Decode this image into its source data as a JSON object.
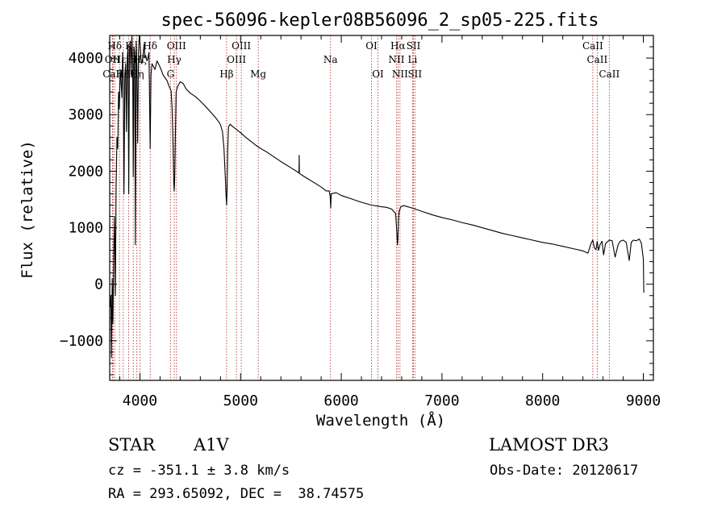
{
  "chart_data": {
    "type": "line",
    "title": "spec-56096-kepler08B56096_2_sp05-225.fits",
    "xlabel": "Wavelength (Å)",
    "ylabel": "Flux (relative)",
    "xlim": [
      3700,
      9100
    ],
    "ylim": [
      -1700,
      4400
    ],
    "xticks": [
      4000,
      5000,
      6000,
      7000,
      8000,
      9000
    ],
    "yticks": [
      -1000,
      0,
      1000,
      2000,
      3000,
      4000
    ],
    "grid": false,
    "series": [
      {
        "name": "spectrum",
        "x": [
          3705,
          3712,
          3718,
          3725,
          3732,
          3740,
          3748,
          3756,
          3764,
          3772,
          3780,
          3788,
          3796,
          3804,
          3812,
          3820,
          3828,
          3835,
          3842,
          3850,
          3858,
          3866,
          3874,
          3882,
          3889,
          3896,
          3904,
          3912,
          3920,
          3928,
          3934,
          3941,
          3948,
          3955,
          3962,
          3970,
          3978,
          3986,
          3994,
          4002,
          4010,
          4018,
          4026,
          4034,
          4042,
          4050,
          4060,
          4070,
          4080,
          4090,
          4102,
          4110,
          4120,
          4135,
          4150,
          4170,
          4190,
          4210,
          4230,
          4250,
          4270,
          4290,
          4310,
          4320,
          4330,
          4336,
          4341,
          4346,
          4352,
          4360,
          4375,
          4400,
          4430,
          4460,
          4500,
          4550,
          4600,
          4650,
          4700,
          4750,
          4780,
          4800,
          4820,
          4835,
          4848,
          4856,
          4861,
          4866,
          4872,
          4880,
          4895,
          4920,
          4950,
          5000,
          5050,
          5100,
          5150,
          5200,
          5250,
          5300,
          5400,
          5500,
          5580,
          5582,
          5584,
          5600,
          5700,
          5800,
          5850,
          5880,
          5890,
          5895,
          5900,
          5950,
          6000,
          6100,
          6200,
          6300,
          6400,
          6450,
          6500,
          6540,
          6552,
          6558,
          6563,
          6568,
          6575,
          6590,
          6620,
          6700,
          6800,
          6900,
          7000,
          7100,
          7200,
          7300,
          7400,
          7500,
          7600,
          7700,
          7800,
          7900,
          8000,
          8100,
          8200,
          8300,
          8400,
          8450,
          8480,
          8498,
          8515,
          8530,
          8542,
          8555,
          8570,
          8590,
          8605,
          8625,
          8662,
          8690,
          8720,
          8750,
          8770,
          8800,
          8830,
          8860,
          8880,
          8900,
          8930,
          8960,
          8980,
          9000,
          9005
        ],
        "values": [
          -400,
          -200,
          -1300,
          100,
          -700,
          500,
          1200,
          -200,
          1700,
          2600,
          2400,
          3400,
          3100,
          3800,
          3600,
          3300,
          4100,
          3600,
          1600,
          3700,
          3900,
          2700,
          4000,
          4200,
          1600,
          4100,
          4300,
          3700,
          4400,
          3900,
          1900,
          4200,
          4100,
          700,
          4300,
          3850,
          2500,
          4100,
          4400,
          4250,
          4000,
          3900,
          3950,
          4100,
          4250,
          4000,
          4030,
          3950,
          4000,
          4100,
          2400,
          3700,
          3900,
          3850,
          3800,
          3950,
          3880,
          3800,
          3700,
          3650,
          3600,
          3500,
          3420,
          3100,
          2400,
          1800,
          1650,
          1900,
          2600,
          3400,
          3500,
          3580,
          3550,
          3450,
          3380,
          3320,
          3240,
          3150,
          3050,
          2950,
          2880,
          2820,
          2700,
          2400,
          1900,
          1550,
          1400,
          1700,
          2400,
          2780,
          2830,
          2790,
          2750,
          2680,
          2600,
          2530,
          2460,
          2400,
          2350,
          2290,
          2170,
          2060,
          1970,
          2280,
          1960,
          1940,
          1830,
          1720,
          1650,
          1650,
          1550,
          1350,
          1600,
          1620,
          1570,
          1510,
          1450,
          1400,
          1370,
          1360,
          1330,
          1250,
          900,
          700,
          800,
          1150,
          1280,
          1370,
          1390,
          1350,
          1290,
          1230,
          1180,
          1140,
          1090,
          1050,
          1000,
          950,
          900,
          860,
          820,
          780,
          740,
          710,
          670,
          630,
          590,
          550,
          720,
          780,
          640,
          610,
          760,
          600,
          700,
          760,
          520,
          720,
          780,
          770,
          480,
          700,
          760,
          780,
          740,
          420,
          740,
          780,
          770,
          800,
          730,
          450,
          -150
        ]
      }
    ],
    "lines": [
      {
        "name": "Hδ",
        "x": 3750
      },
      {
        "name": "OII",
        "x": 3727
      },
      {
        "name": "CaII",
        "x": 3733
      },
      {
        "name": "Hε",
        "x": 3797
      },
      {
        "name": "H8",
        "x": 3835
      },
      {
        "name": "K",
        "x": 3889
      },
      {
        "name": "H",
        "x": 3934
      },
      {
        "name": "Hη",
        "x": 3970
      },
      {
        "name": "Hζ",
        "x": 4000
      },
      {
        "name": "Hδ",
        "x": 4102
      },
      {
        "name": "G",
        "x": 4304
      },
      {
        "name": "Hγ",
        "x": 4341
      },
      {
        "name": "OIII",
        "x": 4363
      },
      {
        "name": "Hβ",
        "x": 4861
      },
      {
        "name": "OIII",
        "x": 4959
      },
      {
        "name": "OIII",
        "x": 5007
      },
      {
        "name": "Mg",
        "x": 5175
      },
      {
        "name": "Na",
        "x": 5893
      },
      {
        "name": "OI",
        "x": 6300
      },
      {
        "name": "OI",
        "x": 6364
      },
      {
        "name": "NII",
        "x": 6548
      },
      {
        "name": "Hα",
        "x": 6563
      },
      {
        "name": "NII",
        "x": 6583
      },
      {
        "name": "Li",
        "x": 6708
      },
      {
        "name": "SII",
        "x": 6717
      },
      {
        "name": "SII",
        "x": 6731
      },
      {
        "name": "CaII",
        "x": 8498
      },
      {
        "name": "CaII",
        "x": 8542
      },
      {
        "name": "CaII",
        "x": 8662
      }
    ],
    "line_labels": [
      {
        "text": "Hδ",
        "x": 3750,
        "row": 1
      },
      {
        "text": "K",
        "x": 3889,
        "row": 1
      },
      {
        "text": "Hδ",
        "x": 4102,
        "row": 1
      },
      {
        "text": "OIII",
        "x": 4363,
        "row": 1
      },
      {
        "text": "OIII",
        "x": 5007,
        "row": 1
      },
      {
        "text": "OI",
        "x": 6300,
        "row": 1
      },
      {
        "text": "Hα",
        "x": 6563,
        "row": 1
      },
      {
        "text": "SII",
        "x": 6717,
        "row": 1
      },
      {
        "text": "CaII",
        "x": 8498,
        "row": 1
      },
      {
        "text": "OII",
        "x": 3727,
        "row": 2
      },
      {
        "text": "Hε",
        "x": 3797,
        "row": 2
      },
      {
        "text": "H",
        "x": 3934,
        "row": 2
      },
      {
        "text": "Hζ",
        "x": 4000,
        "row": 2
      },
      {
        "text": "Hγ",
        "x": 4341,
        "row": 2
      },
      {
        "text": "OIII",
        "x": 4959,
        "row": 2
      },
      {
        "text": "Na",
        "x": 5893,
        "row": 2
      },
      {
        "text": "NII",
        "x": 6548,
        "row": 2
      },
      {
        "text": "Li",
        "x": 6708,
        "row": 2
      },
      {
        "text": "CaII",
        "x": 8542,
        "row": 2
      },
      {
        "text": "CaII",
        "x": 3733,
        "row": 3
      },
      {
        "text": "H8",
        "x": 3835,
        "row": 3
      },
      {
        "text": "Hη",
        "x": 3970,
        "row": 3
      },
      {
        "text": "G",
        "x": 4304,
        "row": 3
      },
      {
        "text": "Hβ",
        "x": 4861,
        "row": 3
      },
      {
        "text": "Mg",
        "x": 5175,
        "row": 3
      },
      {
        "text": "OI",
        "x": 6364,
        "row": 3
      },
      {
        "text": "NII",
        "x": 6583,
        "row": 3
      },
      {
        "text": "SII",
        "x": 6731,
        "row": 3
      },
      {
        "text": "CaII",
        "x": 8662,
        "row": 3
      }
    ]
  },
  "footer": {
    "class_label": "STAR",
    "subclass": "A1V",
    "survey": "LAMOST DR3",
    "cz": "cz = -351.1 ± 3.8 km/s",
    "obs_date": "Obs-Date: 20120617",
    "coords": "RA = 293.65092, DEC =  38.74575"
  },
  "colors": {
    "line_marker": "#b22222",
    "spectrum": "#000000"
  }
}
